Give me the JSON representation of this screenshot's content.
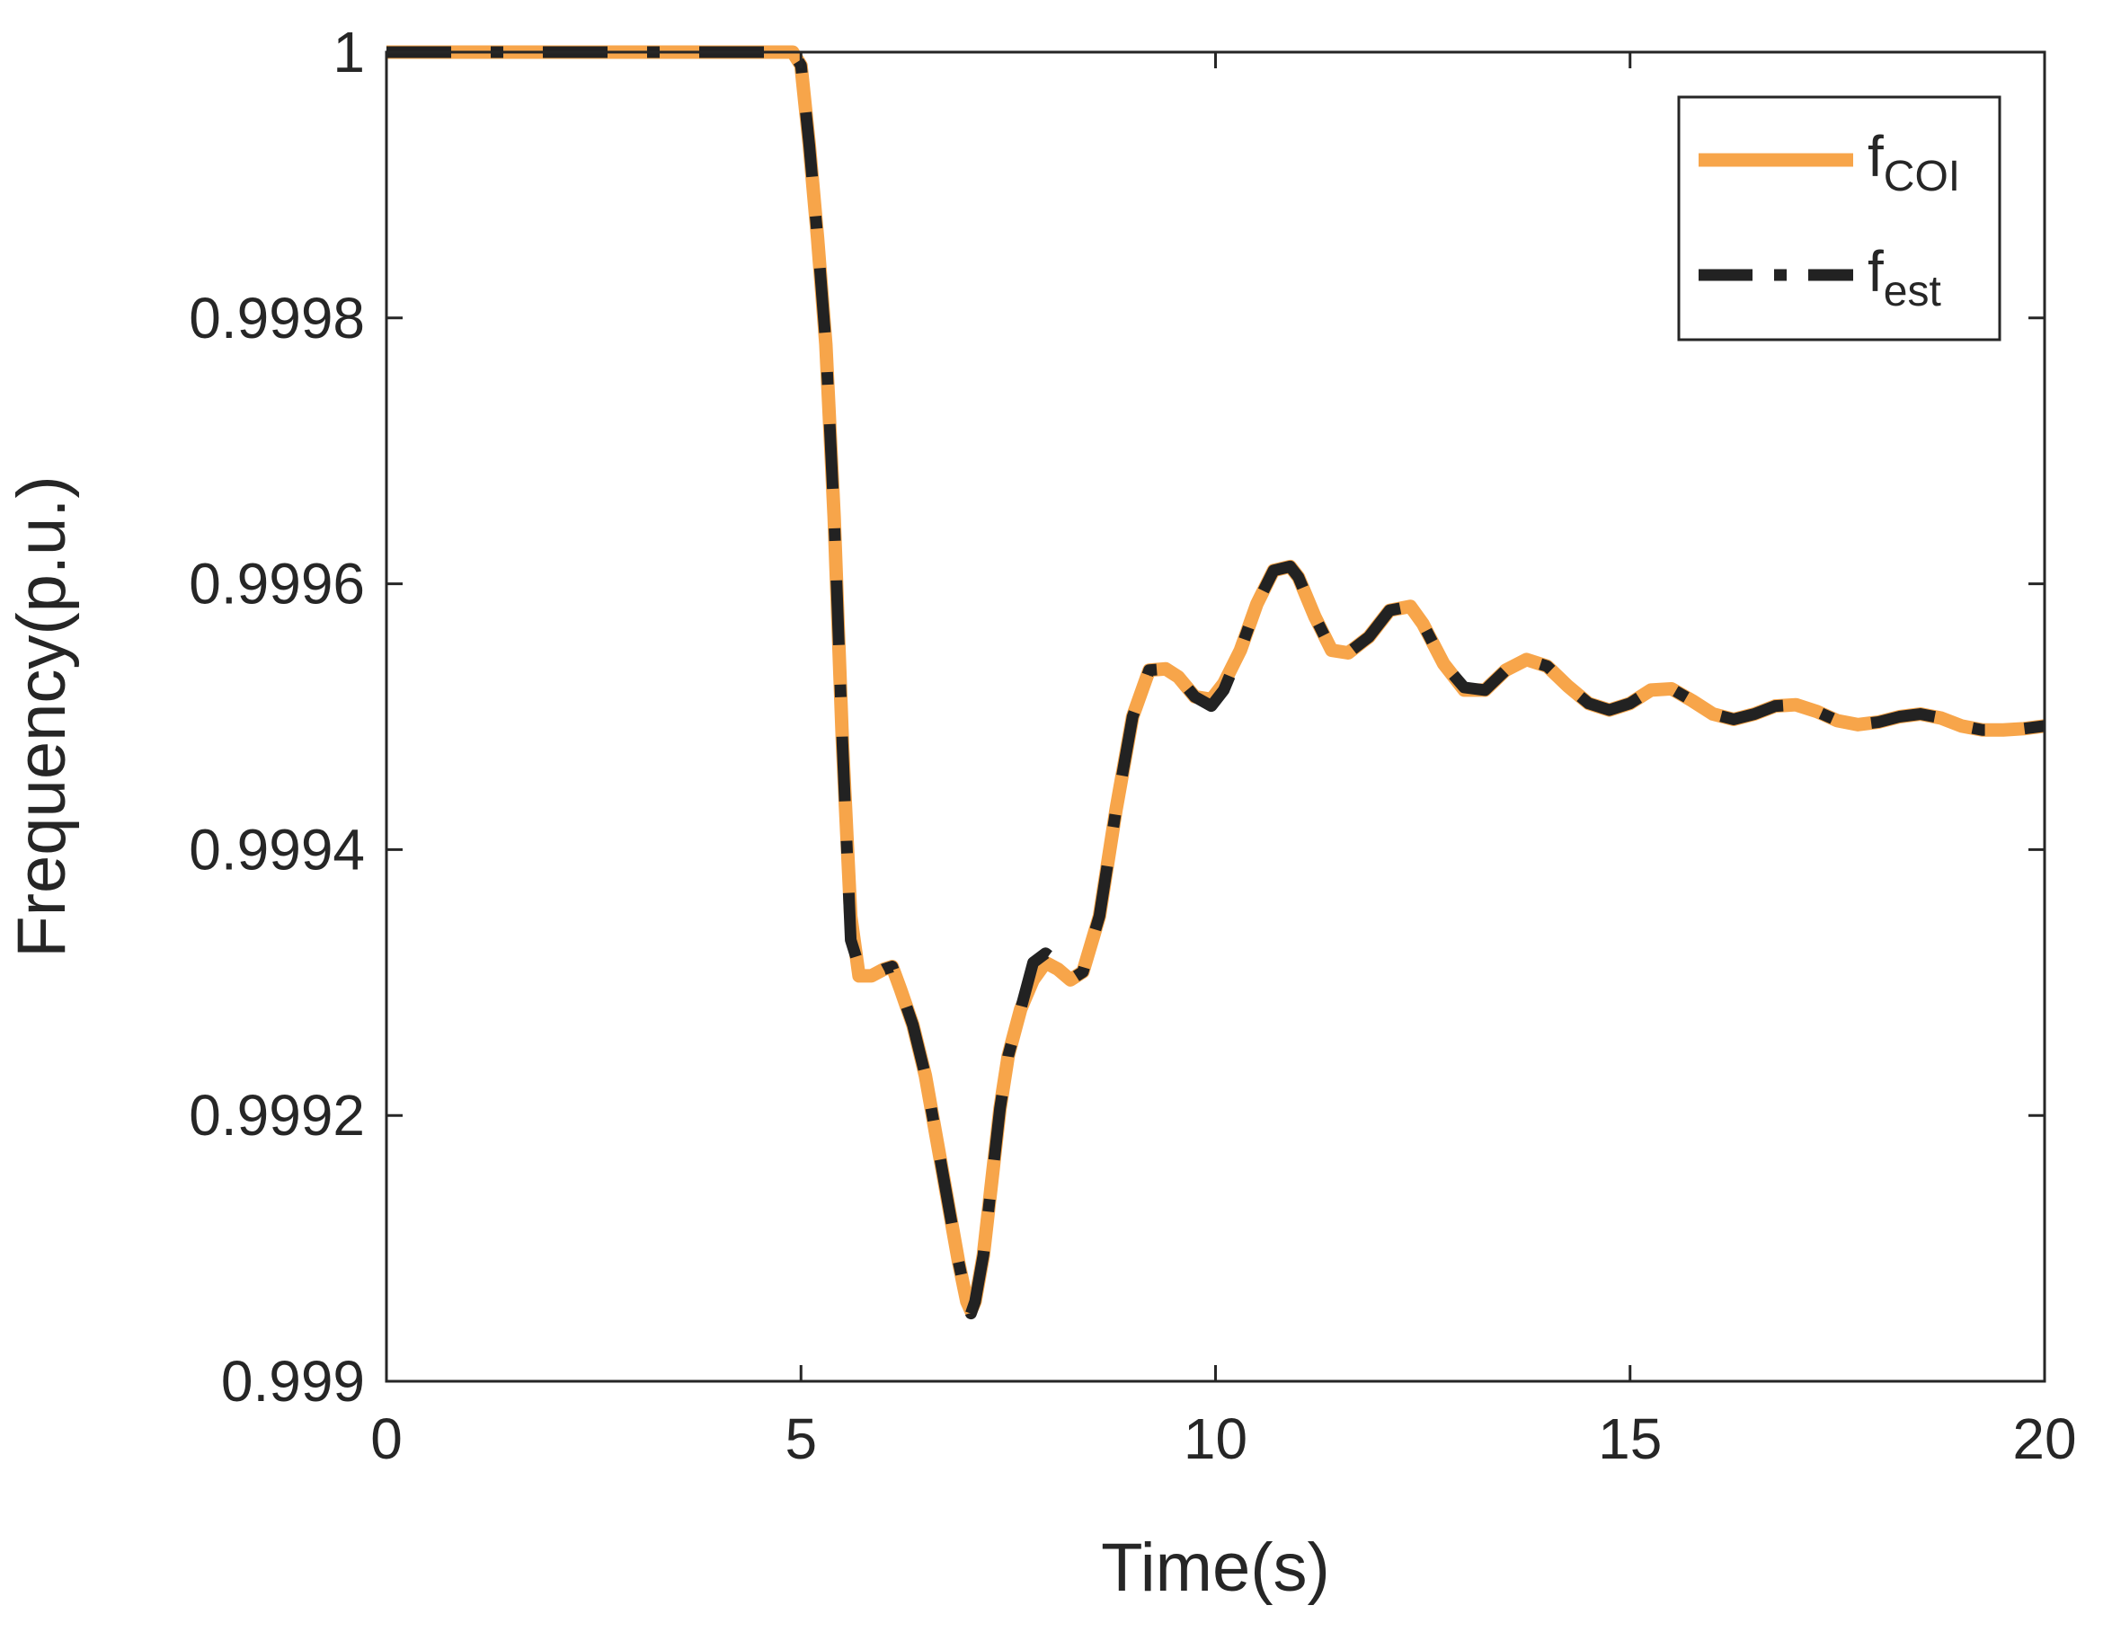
{
  "chart_data": {
    "type": "line",
    "title": "",
    "xlabel": "Time(s)",
    "ylabel": "Frequency(p.u.)",
    "xlim": [
      0,
      20
    ],
    "ylim": [
      0.999,
      1.0
    ],
    "xticks": [
      0,
      5,
      10,
      15,
      20
    ],
    "xtick_labels": [
      "0",
      "5",
      "10",
      "15",
      "20"
    ],
    "yticks": [
      0.999,
      0.9992,
      0.9994,
      0.9996,
      0.9998,
      1.0
    ],
    "ytick_labels": [
      "0.999",
      "0.9992",
      "0.9994",
      "0.9996",
      "0.9998",
      "1"
    ],
    "grid": false,
    "legend_position": "top-right",
    "legend": [
      {
        "base": "f",
        "sub": "COI"
      },
      {
        "base": "f",
        "sub": "est"
      }
    ],
    "colors": {
      "series_coi": "#F7A54A",
      "series_est": "#222222",
      "axes": "#262626"
    },
    "series": [
      {
        "name": "fCOI",
        "style": "solid",
        "x": [
          0,
          1,
          2,
          3,
          4,
          4.9,
          5.0,
          5.1,
          5.2,
          5.3,
          5.4,
          5.5,
          5.6,
          5.7,
          5.85,
          6.0,
          6.1,
          6.2,
          6.35,
          6.5,
          6.7,
          6.9,
          7.0,
          7.05,
          7.1,
          7.2,
          7.3,
          7.4,
          7.5,
          7.65,
          7.8,
          7.95,
          8.1,
          8.25,
          8.4,
          8.6,
          8.8,
          9.0,
          9.2,
          9.4,
          9.55,
          9.75,
          9.95,
          10.1,
          10.3,
          10.5,
          10.7,
          10.9,
          11.0,
          11.2,
          11.4,
          11.6,
          11.85,
          12.1,
          12.35,
          12.5,
          12.75,
          13.0,
          13.25,
          13.5,
          13.75,
          14.0,
          14.25,
          14.5,
          14.75,
          15.0,
          15.25,
          15.5,
          15.75,
          16.0,
          16.25,
          16.5,
          16.75,
          17.0,
          17.25,
          17.5,
          17.75,
          18.0,
          18.25,
          18.5,
          18.75,
          19.0,
          19.25,
          19.5,
          19.75,
          20.0
        ],
        "y": [
          1.0,
          1.0,
          1.0,
          1.0,
          1.0,
          1.0,
          0.99999,
          0.99993,
          0.99986,
          0.99978,
          0.99965,
          0.99948,
          0.99935,
          0.999305,
          0.999305,
          0.99931,
          0.999312,
          0.999295,
          0.999268,
          0.99923,
          0.99916,
          0.99909,
          0.99906,
          0.999053,
          0.99906,
          0.999095,
          0.99915,
          0.999205,
          0.999245,
          0.99928,
          0.999302,
          0.999315,
          0.99931,
          0.999302,
          0.999308,
          0.99935,
          0.99943,
          0.9995,
          0.999535,
          0.999536,
          0.99953,
          0.999515,
          0.999513,
          0.999525,
          0.99955,
          0.999585,
          0.99961,
          0.999613,
          0.999605,
          0.999575,
          0.99955,
          0.999548,
          0.99956,
          0.99958,
          0.999583,
          0.99957,
          0.99954,
          0.99952,
          0.99952,
          0.999535,
          0.999543,
          0.999538,
          0.999523,
          0.99951,
          0.999505,
          0.99951,
          0.99952,
          0.999521,
          0.999512,
          0.999502,
          0.999498,
          0.999502,
          0.999508,
          0.999509,
          0.999504,
          0.999497,
          0.999494,
          0.999496,
          0.9995,
          0.999502,
          0.999499,
          0.999493,
          0.99949,
          0.99949,
          0.999491,
          0.999493
        ]
      },
      {
        "name": "fest",
        "style": "dash-dot",
        "x": [
          0,
          1,
          2,
          3,
          4,
          4.9,
          5.0,
          5.1,
          5.2,
          5.3,
          5.4,
          5.5,
          5.6,
          5.7,
          5.85,
          6.0,
          6.1,
          6.2,
          6.35,
          6.5,
          6.7,
          6.9,
          7.0,
          7.05,
          7.1,
          7.2,
          7.3,
          7.4,
          7.5,
          7.65,
          7.8,
          7.95,
          8.1,
          8.25,
          8.4,
          8.6,
          8.8,
          9.0,
          9.2,
          9.4,
          9.55,
          9.75,
          9.95,
          10.1,
          10.3,
          10.5,
          10.7,
          10.9,
          11.0,
          11.2,
          11.4,
          11.6,
          11.85,
          12.1,
          12.35,
          12.5,
          12.75,
          13.0,
          13.25,
          13.5,
          13.75,
          14.0,
          14.25,
          14.5,
          14.75,
          15.0,
          15.25,
          15.5,
          15.75,
          16.0,
          16.25,
          16.5,
          16.75,
          17.0,
          17.25,
          17.5,
          17.75,
          18.0,
          18.25,
          18.5,
          18.75,
          19.0,
          19.25,
          19.5,
          19.75,
          20.0
        ],
        "y": [
          1.0,
          1.0,
          1.0,
          1.0,
          1.0,
          1.0,
          0.99999,
          0.99993,
          0.99986,
          0.99978,
          0.99965,
          0.99948,
          0.999332,
          0.999312,
          0.999305,
          0.99931,
          0.999312,
          0.999295,
          0.999268,
          0.99923,
          0.99916,
          0.99909,
          0.99906,
          0.999051,
          0.99906,
          0.999095,
          0.99915,
          0.999205,
          0.999245,
          0.99928,
          0.999315,
          0.999322,
          0.999315,
          0.999302,
          0.999308,
          0.99935,
          0.99943,
          0.9995,
          0.999535,
          0.999536,
          0.99953,
          0.999515,
          0.999508,
          0.99952,
          0.99955,
          0.999585,
          0.99961,
          0.999613,
          0.999605,
          0.999575,
          0.99955,
          0.999548,
          0.99956,
          0.99958,
          0.999583,
          0.99957,
          0.99954,
          0.999522,
          0.99952,
          0.999535,
          0.999543,
          0.999538,
          0.999523,
          0.99951,
          0.999505,
          0.99951,
          0.99952,
          0.999521,
          0.999512,
          0.999502,
          0.999498,
          0.999502,
          0.999508,
          0.999509,
          0.999504,
          0.999497,
          0.999494,
          0.999496,
          0.9995,
          0.999502,
          0.999499,
          0.999493,
          0.99949,
          0.99949,
          0.999491,
          0.999493
        ]
      }
    ]
  }
}
